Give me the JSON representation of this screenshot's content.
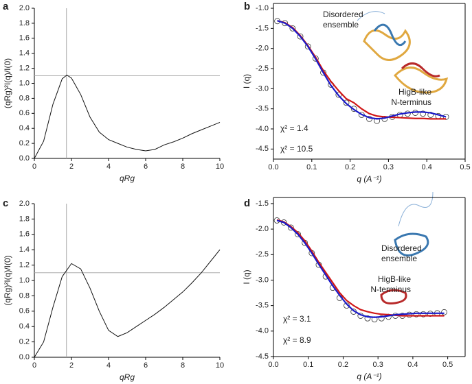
{
  "chart_data": [
    {
      "type": "line",
      "panel": "a",
      "ylabel": "(qRg)²I(q)/I(0)",
      "xlabel": "qRg",
      "x": [
        0,
        0.5,
        1,
        1.5,
        1.75,
        2,
        2.5,
        3,
        3.5,
        4,
        4.5,
        5,
        5.5,
        6,
        6.5,
        7,
        7.5,
        8,
        8.5,
        9,
        9.5,
        10
      ],
      "series": [
        {
          "color": "#111111",
          "values": [
            0,
            0.23,
            0.72,
            1.06,
            1.11,
            1.07,
            0.85,
            0.55,
            0.35,
            0.25,
            0.2,
            0.15,
            0.12,
            0.1,
            0.12,
            0.18,
            0.22,
            0.27,
            0.33,
            0.38,
            0.43,
            0.48
          ]
        }
      ],
      "ref_x": 1.73,
      "ref_y": 1.1,
      "ref_color": "#aaaaaa",
      "xlim": [
        0,
        10
      ],
      "xticks": [
        0,
        2,
        4,
        6,
        8,
        10
      ],
      "ylim": [
        0,
        2
      ],
      "yticks": [
        {
          "value": 0,
          "label": "0.0"
        },
        0.2,
        0.4,
        0.6,
        0.8,
        {
          "value": 1,
          "label": "1.0"
        },
        1.2,
        1.4,
        1.6,
        1.8,
        {
          "value": 2,
          "label": "2.0"
        }
      ]
    },
    {
      "type": "line",
      "panel": "b",
      "ylabel": "I (q)",
      "xlabel": "q (A⁻¹)",
      "x": [
        0.01,
        0.03,
        0.05,
        0.07,
        0.09,
        0.11,
        0.13,
        0.15,
        0.17,
        0.19,
        0.21,
        0.23,
        0.25,
        0.27,
        0.29,
        0.31,
        0.33,
        0.35,
        0.37,
        0.39,
        0.41,
        0.43,
        0.45
      ],
      "series": [
        {
          "color": "#333333",
          "marker": "circle",
          "values": [
            -1.32,
            -1.37,
            -1.5,
            -1.7,
            -1.95,
            -2.25,
            -2.6,
            -2.9,
            -3.15,
            -3.35,
            -3.5,
            -3.65,
            -3.75,
            -3.8,
            -3.75,
            -3.7,
            -3.65,
            -3.62,
            -3.6,
            -3.62,
            -3.65,
            -3.68,
            -3.7
          ]
        },
        {
          "color": "#d01818",
          "values": [
            -1.31,
            -1.36,
            -1.48,
            -1.68,
            -1.93,
            -2.22,
            -2.55,
            -2.82,
            -3.05,
            -3.25,
            -3.35,
            -3.5,
            -3.62,
            -3.68,
            -3.7,
            -3.71,
            -3.72,
            -3.73,
            -3.74,
            -3.74,
            -3.75,
            -3.75,
            -3.75
          ]
        },
        {
          "color": "#1a1ac8",
          "values": [
            -1.31,
            -1.37,
            -1.5,
            -1.7,
            -1.95,
            -2.26,
            -2.6,
            -2.92,
            -3.17,
            -3.37,
            -3.52,
            -3.64,
            -3.72,
            -3.75,
            -3.73,
            -3.68,
            -3.63,
            -3.6,
            -3.58,
            -3.58,
            -3.6,
            -3.65,
            -3.7
          ]
        }
      ],
      "annotations": [
        {
          "text": [
            "Disordered",
            "ensemble"
          ],
          "color": "#1a1ac8"
        },
        {
          "text": [
            "HigB-like",
            "N-terminus"
          ],
          "color": "#d01818"
        },
        {
          "text": [
            "χ² = 1.4"
          ],
          "color": "#1a1ac8"
        },
        {
          "text": [
            "χ² = 10.5"
          ],
          "color": "#d01818"
        }
      ],
      "xlim": [
        0,
        0.5
      ],
      "xticks": [
        {
          "value": 0,
          "label": "0.0"
        },
        0.1,
        0.2,
        0.3,
        0.4,
        0.5
      ],
      "ylim": [
        -4.75,
        -0.88
      ],
      "yticks": [
        {
          "value": -1,
          "label": "-1.0"
        },
        -1.5,
        {
          "value": -2,
          "label": "-2.0"
        },
        -2.5,
        {
          "value": -3,
          "label": "-3.0"
        },
        -3.5,
        {
          "value": -4,
          "label": "-4.0"
        },
        -4.5
      ]
    },
    {
      "type": "line",
      "panel": "c",
      "ylabel": "(qRg)²I(q)/I(0)",
      "xlabel": "qRg",
      "x": [
        0,
        0.5,
        1,
        1.5,
        2,
        2.5,
        3,
        3.5,
        4,
        4.5,
        5,
        5.5,
        6,
        6.5,
        7,
        7.5,
        8,
        8.5,
        9,
        9.5,
        10
      ],
      "series": [
        {
          "color": "#111111",
          "values": [
            0,
            0.2,
            0.65,
            1.05,
            1.22,
            1.15,
            0.9,
            0.6,
            0.35,
            0.27,
            0.32,
            0.4,
            0.48,
            0.56,
            0.65,
            0.75,
            0.85,
            0.97,
            1.1,
            1.25,
            1.4
          ]
        }
      ],
      "ref_x": 1.73,
      "ref_y": 1.1,
      "ref_color": "#aaaaaa",
      "xlim": [
        0,
        10
      ],
      "xticks": [
        0,
        2,
        4,
        6,
        8,
        10
      ],
      "ylim": [
        0,
        2
      ],
      "yticks": [
        {
          "value": 0,
          "label": "0.0"
        },
        0.2,
        0.4,
        0.6,
        0.8,
        {
          "value": 1,
          "label": "1.0"
        },
        1.2,
        1.4,
        1.6,
        1.8,
        {
          "value": 2,
          "label": "2.0"
        }
      ]
    },
    {
      "type": "line",
      "panel": "d",
      "ylabel": "I (q)",
      "xlabel": "q (A⁻¹)",
      "x": [
        0.01,
        0.03,
        0.05,
        0.07,
        0.09,
        0.11,
        0.13,
        0.15,
        0.17,
        0.19,
        0.21,
        0.23,
        0.25,
        0.27,
        0.29,
        0.31,
        0.33,
        0.35,
        0.37,
        0.39,
        0.41,
        0.43,
        0.45,
        0.47,
        0.49
      ],
      "series": [
        {
          "color": "#333333",
          "marker": "circle",
          "values": [
            -1.83,
            -1.87,
            -1.97,
            -2.1,
            -2.27,
            -2.47,
            -2.7,
            -2.93,
            -3.15,
            -3.35,
            -3.5,
            -3.62,
            -3.7,
            -3.75,
            -3.77,
            -3.75,
            -3.72,
            -3.7,
            -3.7,
            -3.68,
            -3.67,
            -3.67,
            -3.66,
            -3.65,
            -3.63
          ]
        },
        {
          "color": "#d01818",
          "values": [
            -1.82,
            -1.86,
            -1.95,
            -2.07,
            -2.23,
            -2.43,
            -2.65,
            -2.85,
            -3.05,
            -3.25,
            -3.4,
            -3.5,
            -3.58,
            -3.62,
            -3.65,
            -3.67,
            -3.68,
            -3.69,
            -3.7,
            -3.7,
            -3.7,
            -3.7,
            -3.7,
            -3.7,
            -3.7
          ]
        },
        {
          "color": "#1a1ac8",
          "values": [
            -1.83,
            -1.87,
            -1.97,
            -2.1,
            -2.27,
            -2.47,
            -2.69,
            -2.9,
            -3.11,
            -3.3,
            -3.47,
            -3.6,
            -3.68,
            -3.72,
            -3.73,
            -3.72,
            -3.7,
            -3.68,
            -3.67,
            -3.66,
            -3.65,
            -3.65,
            -3.65,
            -3.65,
            -3.65
          ]
        }
      ],
      "annotations": [
        {
          "text": [
            "Disordered",
            "ensemble"
          ],
          "color": "#1a1ac8"
        },
        {
          "text": [
            "HigB-like",
            "N-terminus"
          ],
          "color": "#d01818"
        },
        {
          "text": [
            "χ² = 3.1"
          ],
          "color": "#1a1ac8"
        },
        {
          "text": [
            "χ² = 8.9"
          ],
          "color": "#d01818"
        }
      ],
      "xlim": [
        0,
        0.55
      ],
      "xticks": [
        {
          "value": 0,
          "label": "0.0"
        },
        0.1,
        0.2,
        0.3,
        0.4,
        0.5
      ],
      "ylim": [
        -4.5,
        -1.38
      ],
      "yticks": [
        -1.5,
        {
          "value": -2,
          "label": "-2.0"
        },
        -2.5,
        {
          "value": -3,
          "label": "-3.0"
        },
        -3.5,
        {
          "value": -4,
          "label": "-4.0"
        },
        -4.5
      ]
    }
  ]
}
